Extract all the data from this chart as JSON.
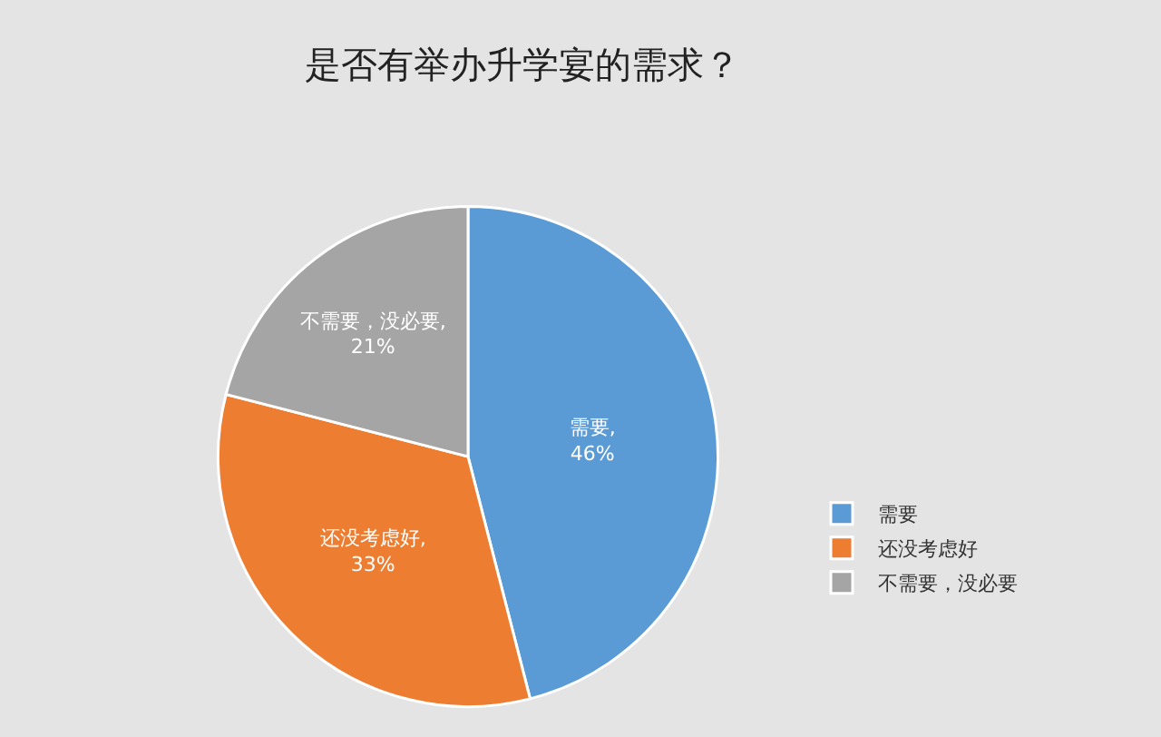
{
  "chart_data": {
    "type": "pie",
    "title": "是否有举办升学宴的需求？",
    "categories": [
      "需要",
      "还没考虑好",
      "不需要，没必要"
    ],
    "values": [
      46,
      33,
      21
    ],
    "colors": [
      "#5b9bd5",
      "#ed7d31",
      "#a5a5a5"
    ],
    "value_labels": [
      "需要, 46%",
      "还没考虑好, 33%",
      "不需要，没必要, 21%"
    ],
    "legend": "right"
  }
}
